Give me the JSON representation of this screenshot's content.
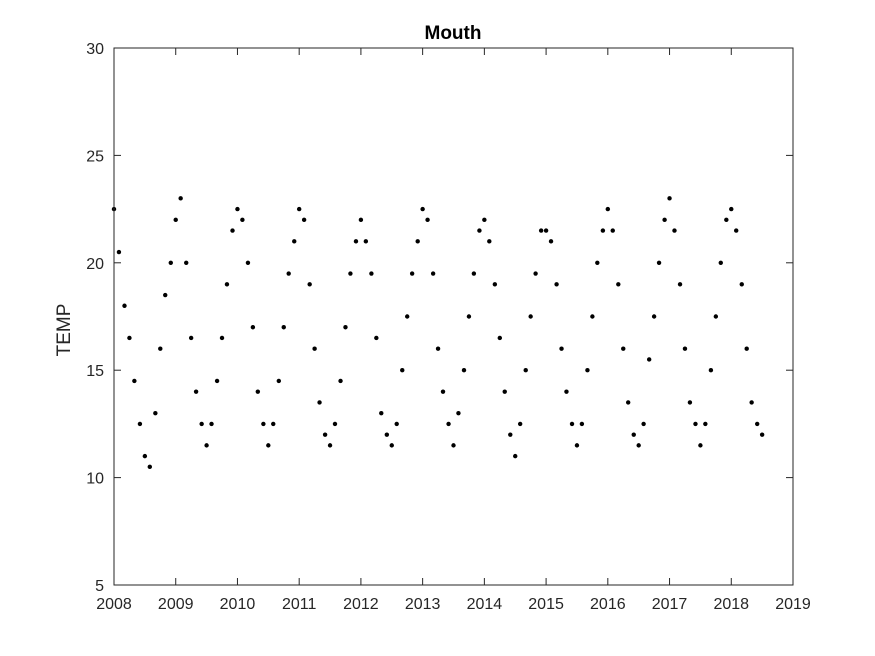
{
  "chart_data": {
    "type": "scatter",
    "title": "Mouth",
    "xlabel": "",
    "ylabel": "TEMP",
    "xlim": [
      2008,
      2019
    ],
    "ylim": [
      5,
      30
    ],
    "x_ticks": [
      "2008",
      "2009",
      "2010",
      "2011",
      "2012",
      "2013",
      "2014",
      "2015",
      "2016",
      "2017",
      "2018",
      "2019"
    ],
    "y_ticks": [
      "5",
      "10",
      "15",
      "20",
      "25",
      "30"
    ],
    "grid": false,
    "legend": "none",
    "marker_color": "#000000",
    "series": [
      {
        "x": [
          2008.0,
          2008.08,
          2008.17,
          2008.25,
          2008.33,
          2008.42,
          2008.5,
          2008.58,
          2008.67,
          2008.75,
          2008.83,
          2008.92,
          2009.0,
          2009.08,
          2009.17,
          2009.25,
          2009.33,
          2009.42,
          2009.5,
          2009.58,
          2009.67,
          2009.75,
          2009.83,
          2009.92,
          2010.0,
          2010.08,
          2010.17,
          2010.25,
          2010.33,
          2010.42,
          2010.5,
          2010.58,
          2010.67,
          2010.75,
          2010.83,
          2010.92,
          2011.0,
          2011.08,
          2011.17,
          2011.25,
          2011.33,
          2011.42,
          2011.5,
          2011.58,
          2011.67,
          2011.75,
          2011.83,
          2011.92,
          2012.0,
          2012.08,
          2012.17,
          2012.25,
          2012.33,
          2012.42,
          2012.5,
          2012.58,
          2012.67,
          2012.75,
          2012.83,
          2012.92,
          2013.0,
          2013.08,
          2013.17,
          2013.25,
          2013.33,
          2013.42,
          2013.5,
          2013.58,
          2013.67,
          2013.75,
          2013.83,
          2013.92,
          2014.0,
          2014.08,
          2014.17,
          2014.25,
          2014.33,
          2014.42,
          2014.5,
          2014.58,
          2014.67,
          2014.75,
          2014.83,
          2014.92,
          2015.0,
          2015.08,
          2015.17,
          2015.25,
          2015.33,
          2015.42,
          2015.5,
          2015.58,
          2015.67,
          2015.75,
          2015.83,
          2015.92,
          2016.0,
          2016.08,
          2016.17,
          2016.25,
          2016.33,
          2016.42,
          2016.5,
          2016.58,
          2016.67,
          2016.75,
          2016.83,
          2016.92,
          2017.0,
          2017.08,
          2017.17,
          2017.25,
          2017.33,
          2017.42,
          2017.5,
          2017.58,
          2017.67,
          2017.75,
          2017.83,
          2017.92,
          2018.0,
          2018.08,
          2018.17,
          2018.25,
          2018.33,
          2018.42,
          2018.5
        ],
        "y": [
          22.5,
          20.5,
          18.0,
          16.5,
          14.5,
          12.5,
          11.0,
          10.5,
          13.0,
          16.0,
          18.5,
          20.0,
          22.0,
          23.0,
          20.0,
          16.5,
          14.0,
          12.5,
          11.5,
          12.5,
          14.5,
          16.5,
          19.0,
          21.5,
          22.5,
          22.0,
          20.0,
          17.0,
          14.0,
          12.5,
          11.5,
          12.5,
          14.5,
          17.0,
          19.5,
          21.0,
          22.5,
          22.0,
          19.0,
          16.0,
          13.5,
          12.0,
          11.5,
          12.5,
          14.5,
          17.0,
          19.5,
          21.0,
          22.0,
          21.0,
          19.5,
          16.5,
          13.0,
          12.0,
          11.5,
          12.5,
          15.0,
          17.5,
          19.5,
          21.0,
          22.5,
          22.0,
          19.5,
          16.0,
          14.0,
          12.5,
          11.5,
          13.0,
          15.0,
          17.5,
          19.5,
          21.5,
          22.0,
          21.0,
          19.0,
          16.5,
          14.0,
          12.0,
          11.0,
          12.5,
          15.0,
          17.5,
          19.5,
          21.5,
          21.5,
          21.0,
          19.0,
          16.0,
          14.0,
          12.5,
          11.5,
          12.5,
          15.0,
          17.5,
          20.0,
          21.5,
          22.5,
          21.5,
          19.0,
          16.0,
          13.5,
          12.0,
          11.5,
          12.5,
          15.5,
          17.5,
          20.0,
          22.0,
          23.0,
          21.5,
          19.0,
          16.0,
          13.5,
          12.5,
          11.5,
          12.5,
          15.0,
          17.5,
          20.0,
          22.0,
          22.5,
          21.5,
          19.0,
          16.0,
          13.5,
          12.5,
          12.0
        ]
      }
    ]
  }
}
